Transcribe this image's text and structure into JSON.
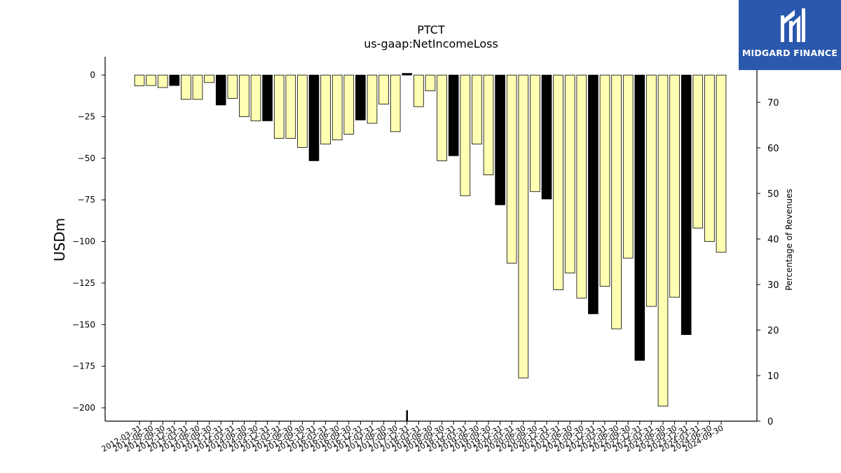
{
  "brand": {
    "name": "MIDGARD FINANCE",
    "bg_color": "#2a58ad"
  },
  "chart_data": {
    "type": "bar",
    "title": "PTCT",
    "subtitle": "us-gaap:NetIncomeLoss",
    "ylabel": "USDm",
    "y2label": "Percentage of Revenues",
    "ylim": [
      -208,
      11
    ],
    "y2lim": [
      0,
      80
    ],
    "yticks": [
      0,
      -25,
      -50,
      -75,
      -100,
      -125,
      -150,
      -175,
      -200
    ],
    "y2ticks": [
      0,
      10,
      20,
      30,
      40,
      50,
      60,
      70,
      80
    ],
    "bar_color_quarter": "#ffffb3",
    "bar_color_annual": "#000000",
    "categories": [
      "2012-03-31",
      "2012-06-30",
      "2012-09-30",
      "2012-12-31",
      "2013-03-31",
      "2013-06-30",
      "2013-09-30",
      "2013-12-31",
      "2014-03-31",
      "2014-06-30",
      "2014-09-30",
      "2014-12-31",
      "2015-03-31",
      "2015-06-30",
      "2015-09-30",
      "2015-12-31",
      "2016-03-31",
      "2016-06-30",
      "2016-09-30",
      "2016-12-31",
      "2017-03-31",
      "2017-06-30",
      "2017-09-30",
      "2017-12-31",
      "2018-03-31",
      "2018-06-30",
      "2018-09-30",
      "2018-12-31",
      "2019-03-31",
      "2019-06-30",
      "2019-09-30",
      "2019-12-31",
      "2020-03-31",
      "2020-06-30",
      "2020-09-30",
      "2020-12-31",
      "2021-03-31",
      "2021-06-30",
      "2021-09-30",
      "2021-12-31",
      "2022-03-31",
      "2022-06-30",
      "2022-09-30",
      "2022-12-31",
      "2023-03-31",
      "2023-06-30",
      "2023-09-30",
      "2023-12-31",
      "2024-03-31",
      "2024-06-30",
      "2024-09-30"
    ],
    "values": [
      -6.5,
      -6.3,
      -7.5,
      -6.3,
      -14.6,
      -14.6,
      -4.5,
      -18,
      -14,
      -25,
      -27.5,
      -27.5,
      -38,
      -38,
      -43.5,
      -51.5,
      -41.5,
      -39,
      -35.5,
      -27,
      -29,
      -17.5,
      -34,
      1,
      -19,
      -9.5,
      -51.5,
      -48.5,
      -72.5,
      -41.5,
      -60,
      -78,
      -113,
      -182,
      -70,
      -74.5,
      -129,
      -119,
      -134,
      -143.5,
      -127,
      -152.5,
      -110,
      -171.5,
      -139,
      -199,
      -133.5,
      -156,
      -92,
      -100,
      -106.5
    ],
    "annual": [
      false,
      false,
      false,
      true,
      false,
      false,
      false,
      true,
      false,
      false,
      false,
      true,
      false,
      false,
      false,
      true,
      false,
      false,
      false,
      true,
      false,
      false,
      false,
      true,
      false,
      false,
      false,
      true,
      false,
      false,
      false,
      true,
      false,
      false,
      false,
      true,
      false,
      false,
      false,
      true,
      false,
      false,
      false,
      true,
      false,
      false,
      false,
      true,
      false,
      false,
      false
    ],
    "percent_of_revenue": [
      {
        "category": "2017-12-31",
        "value": 2.4
      }
    ],
    "grid": false,
    "legend": "none"
  }
}
